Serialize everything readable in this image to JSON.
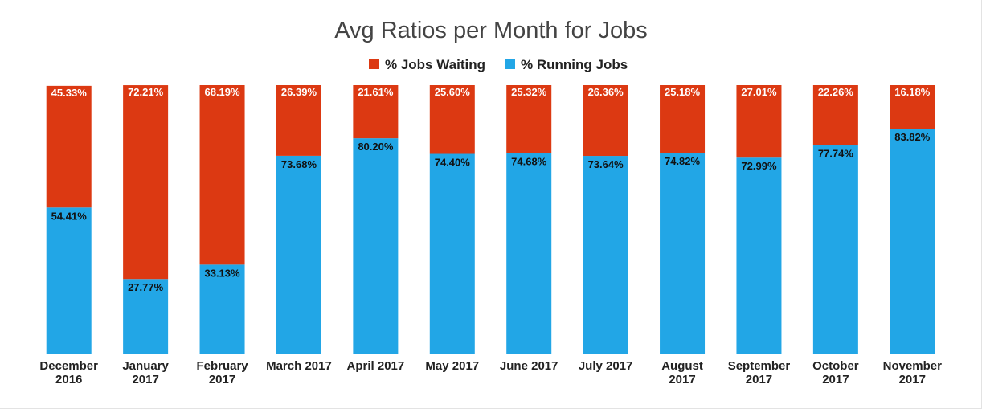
{
  "chart_data": {
    "type": "bar",
    "stacked": true,
    "title": "Avg Ratios per Month for Jobs",
    "xlabel": "",
    "ylabel": "",
    "ylim": [
      0,
      100
    ],
    "grid": false,
    "legend_position": "top",
    "categories": [
      "December 2016",
      "January 2017",
      "February 2017",
      "March 2017",
      "April 2017",
      "May 2017",
      "June 2017",
      "July 2017",
      "August 2017",
      "September 2017",
      "October 2017",
      "November 2017"
    ],
    "series": [
      {
        "name": "% Running Jobs",
        "color": "#22a6e6",
        "label_color": "#111111",
        "values": [
          54.41,
          27.77,
          33.13,
          73.68,
          80.2,
          74.4,
          74.68,
          73.64,
          74.82,
          72.99,
          77.74,
          83.82
        ],
        "labels": [
          "54.41%",
          "27.77%",
          "33.13%",
          "73.68%",
          "80.20%",
          "74.40%",
          "74.68%",
          "73.64%",
          "74.82%",
          "72.99%",
          "77.74%",
          "83.82%"
        ]
      },
      {
        "name": "% Jobs Waiting",
        "color": "#dc3912",
        "label_color": "#ffffff",
        "values": [
          45.33,
          72.21,
          68.19,
          26.39,
          21.61,
          25.6,
          25.32,
          26.36,
          25.18,
          27.01,
          22.26,
          16.18
        ],
        "labels": [
          "45.33%",
          "72.21%",
          "68.19%",
          "26.39%",
          "21.61%",
          "25.60%",
          "25.32%",
          "26.36%",
          "25.18%",
          "27.01%",
          "22.26%",
          "16.18%"
        ]
      }
    ],
    "legend_order": [
      1,
      0
    ]
  }
}
